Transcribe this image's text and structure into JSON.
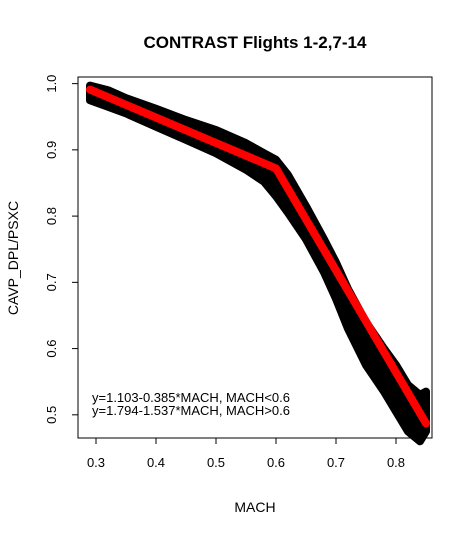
{
  "chart_data": {
    "type": "scatter",
    "title": "CONTRAST Flights 1-2,7-14",
    "xlabel": "MACH",
    "ylabel": "CAVP_DPL/PSXC",
    "xlim": [
      0.27,
      0.86
    ],
    "ylim": [
      0.465,
      1.01
    ],
    "x_ticks": [
      0.3,
      0.4,
      0.5,
      0.6,
      0.7,
      0.8
    ],
    "y_ticks": [
      0.5,
      0.6,
      0.7,
      0.8,
      0.9,
      1.0
    ],
    "x_tick_labels": [
      "0.3",
      "0.4",
      "0.5",
      "0.6",
      "0.7",
      "0.8"
    ],
    "y_tick_labels": [
      "0.5",
      "0.6",
      "0.7",
      "0.8",
      "0.9",
      "1.0"
    ],
    "grid": false,
    "legend": "none",
    "series": [
      {
        "kind": "scatter-band",
        "color": "#000000",
        "x": [
          0.29,
          0.32,
          0.35,
          0.4,
          0.45,
          0.5,
          0.55,
          0.58,
          0.6,
          0.62,
          0.65,
          0.68,
          0.7,
          0.72,
          0.75,
          0.78,
          0.8,
          0.82,
          0.84,
          0.85
        ],
        "y_upper": [
          0.997,
          0.99,
          0.978,
          0.962,
          0.945,
          0.93,
          0.91,
          0.895,
          0.885,
          0.862,
          0.815,
          0.765,
          0.73,
          0.69,
          0.64,
          0.6,
          0.575,
          0.545,
          0.53,
          0.535
        ],
        "y_lower": [
          0.975,
          0.965,
          0.955,
          0.935,
          0.915,
          0.895,
          0.87,
          0.852,
          0.83,
          0.805,
          0.765,
          0.715,
          0.675,
          0.63,
          0.575,
          0.535,
          0.505,
          0.475,
          0.46,
          0.475
        ]
      },
      {
        "kind": "fit-line",
        "color": "#ff0000",
        "x": [
          0.29,
          0.6,
          0.85
        ],
        "y": [
          0.991,
          0.872,
          0.487
        ]
      }
    ],
    "annotations": [
      "y=1.103-0.385*MACH, MACH<0.6",
      "y=1.794-1.537*MACH, MACH>0.6"
    ]
  }
}
